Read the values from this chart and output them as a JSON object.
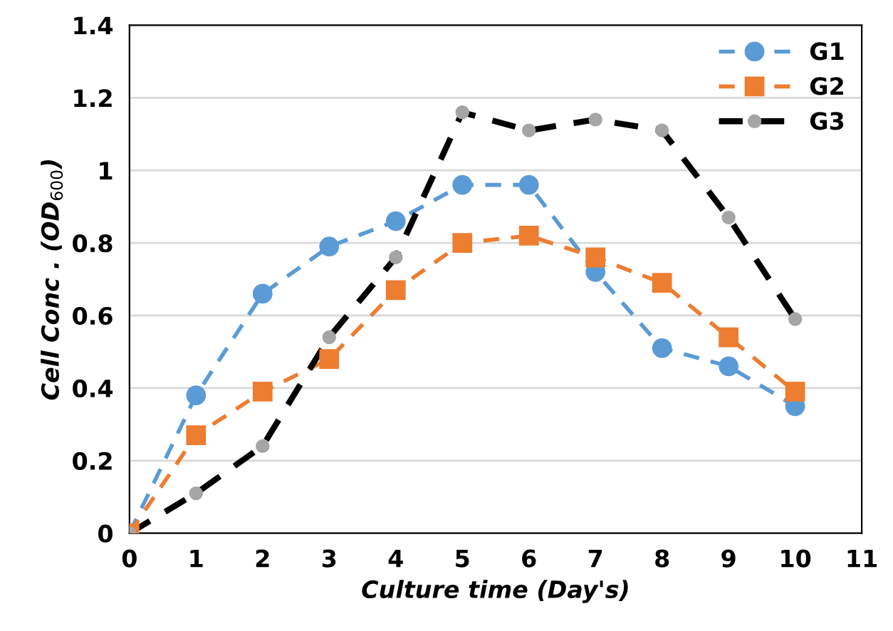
{
  "chart_data": {
    "type": "line",
    "xlabel": "Culture time (Day's)",
    "ylabel": "Cell Conc . (OD$_{600}$)",
    "x": [
      0,
      1,
      2,
      3,
      4,
      5,
      6,
      7,
      8,
      9,
      10
    ],
    "xlim": [
      0,
      11
    ],
    "xticks": [
      0,
      1,
      2,
      3,
      4,
      5,
      6,
      7,
      8,
      9,
      10,
      11
    ],
    "ylim": [
      0,
      1.4
    ],
    "yticks": [
      0,
      0.2,
      0.4,
      0.6,
      0.8,
      {
        "value": 1,
        "label": "1"
      },
      1.2,
      1.4
    ],
    "grid": "y",
    "legend": "top right",
    "line_style": "dashed",
    "series": [
      {
        "name": "G1",
        "color": "#5b9bd5",
        "marker": "circle",
        "values": [
          0,
          0.38,
          0.66,
          0.79,
          0.86,
          0.96,
          0.96,
          0.72,
          0.51,
          0.46,
          0.35
        ]
      },
      {
        "name": "G2",
        "color": "#ed7d31",
        "marker": "square",
        "values": [
          0,
          0.27,
          0.39,
          0.48,
          0.67,
          0.8,
          0.82,
          0.76,
          0.69,
          0.54,
          0.39
        ]
      },
      {
        "name": "G3",
        "color": "#000000",
        "marker": "circle",
        "colors": [
          "#a5a5a5",
          "#a5a5a5",
          "#a5a5a5",
          "#a5a5a5",
          "#a5a5a5",
          "#a5a5a5",
          "#a5a5a5",
          "#a5a5a5",
          "#a5a5a5",
          "#a5a5a5",
          "#a5a5a5"
        ],
        "values": [
          0,
          0.11,
          0.24,
          0.54,
          0.76,
          1.16,
          1.11,
          1.14,
          1.11,
          0.87,
          0.59
        ]
      }
    ]
  }
}
